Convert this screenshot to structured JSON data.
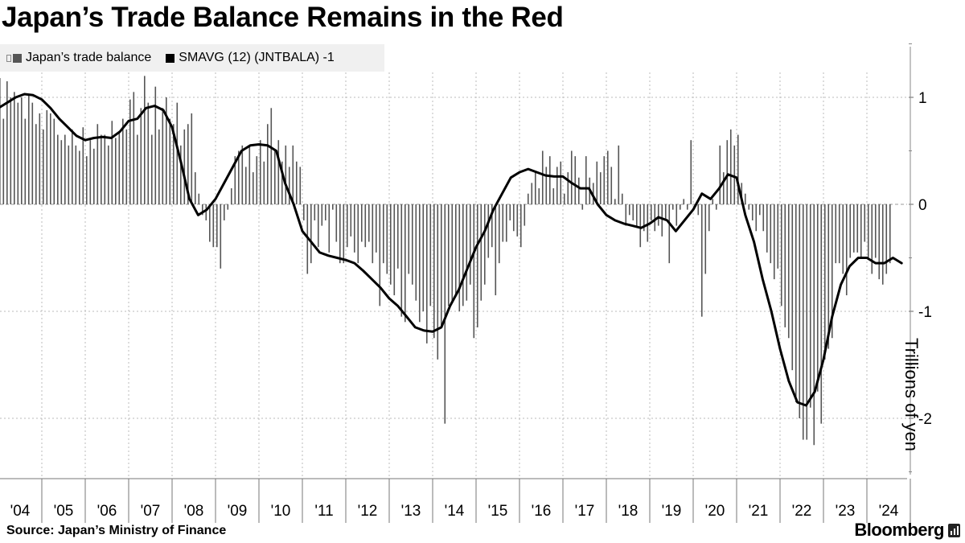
{
  "header": {
    "title": "Japan’s Trade Balance Remains in the Red"
  },
  "legend": {
    "items": [
      {
        "label": "Japan’s trade balance",
        "color": "#555555"
      },
      {
        "label": "SMAVG (12) (JNTBALA) -1",
        "color": "#000000"
      }
    ]
  },
  "footer": {
    "source": "Source: Japan’s Ministry of Finance",
    "brand": "Bloomberg"
  },
  "chart_data": {
    "type": "bar",
    "title": "Japan’s Trade Balance Remains in the Red",
    "ylabel": "Trillions of yen",
    "xlabel": "",
    "ylim": [
      -2.5,
      1.5
    ],
    "yticks": [
      1,
      0,
      -1,
      -2
    ],
    "ytick_labels": [
      "1",
      "0",
      "-1",
      "-2"
    ],
    "x_start": 2004,
    "x_end": 2024.9,
    "xtick_labels": [
      "'04",
      "'05",
      "'06",
      "'07",
      "'08",
      "'09",
      "'10",
      "'11",
      "'12",
      "'13",
      "'14",
      "'15",
      "'16",
      "'17",
      "'18",
      "'19",
      "'20",
      "'21",
      "'22",
      "'23",
      "'24"
    ],
    "grid": true,
    "series": [
      {
        "name": "Japan’s trade balance",
        "kind": "bar",
        "color": "#555555",
        "start": 2004.0,
        "step": 0.08333,
        "values": [
          1.18,
          0.8,
          1.15,
          1.0,
          1.05,
          0.95,
          1.0,
          0.8,
          1.02,
          0.95,
          0.75,
          0.85,
          0.7,
          0.88,
          0.85,
          0.8,
          0.65,
          0.6,
          0.65,
          0.55,
          0.7,
          0.55,
          0.5,
          0.72,
          0.45,
          0.6,
          0.52,
          0.75,
          0.65,
          0.65,
          0.55,
          0.78,
          0.62,
          0.68,
          0.8,
          0.7,
          0.98,
          1.05,
          0.65,
          0.9,
          1.2,
          0.95,
          0.65,
          1.1,
          0.7,
          0.9,
          1.0,
          0.8,
          0.75,
          0.95,
          0.55,
          0.7,
          0.75,
          0.85,
          0.3,
          0.1,
          -0.1,
          -0.15,
          -0.35,
          -0.4,
          -0.4,
          -0.6,
          -0.15,
          -0.05,
          0.15,
          0.45,
          0.5,
          0.55,
          0.35,
          0.55,
          0.3,
          0.45,
          0.6,
          0.4,
          0.75,
          0.9,
          0.5,
          0.6,
          0.4,
          0.55,
          0.35,
          0.55,
          0.4,
          0.35,
          -0.15,
          -0.65,
          -0.55,
          -0.15,
          -0.4,
          -0.2,
          -0.15,
          -0.45,
          -0.05,
          -0.35,
          -0.55,
          -0.55,
          -0.4,
          -0.3,
          -0.45,
          -0.55,
          -0.35,
          -0.4,
          -0.35,
          -0.55,
          -0.45,
          -0.95,
          -0.55,
          -0.65,
          -0.75,
          -0.85,
          -0.6,
          -1.05,
          -1.1,
          -0.65,
          -0.75,
          -0.9,
          -1.1,
          -1.0,
          -1.3,
          -0.95,
          -1.25,
          -1.45,
          -1.15,
          -2.05,
          -0.95,
          -0.9,
          -0.85,
          -1.0,
          -0.95,
          -0.9,
          -0.75,
          -1.25,
          -1.15,
          -0.9,
          -0.75,
          -0.5,
          -0.4,
          -0.85,
          -0.55,
          -0.35,
          -0.35,
          -0.15,
          -0.25,
          -0.3,
          -0.4,
          -0.2,
          0.1,
          0.2,
          0.3,
          0.15,
          0.5,
          0.35,
          0.45,
          0.15,
          0.35,
          0.4,
          0.1,
          0.3,
          0.5,
          0.45,
          0.25,
          -0.05,
          0.45,
          0.25,
          0.2,
          0.4,
          0.3,
          0.45,
          0.5,
          0.35,
          0.05,
          0.55,
          0.1,
          -0.2,
          -0.1,
          -0.15,
          -0.2,
          -0.4,
          -0.25,
          -0.35,
          -0.15,
          -0.25,
          -0.2,
          -0.3,
          -0.15,
          -0.55,
          -0.05,
          -0.2,
          -0.05,
          0.05,
          -0.05,
          0.6,
          0.0,
          -0.1,
          -1.05,
          -0.65,
          -0.25,
          0.05,
          -0.05,
          0.55,
          0.3,
          0.6,
          0.7,
          0.55,
          0.65,
          0.2,
          0.1,
          -0.05,
          -0.15,
          -0.25,
          -0.1,
          -0.25,
          -0.45,
          -0.55,
          -0.7,
          -0.6,
          -0.95,
          -1.15,
          -1.25,
          -1.55,
          -1.85,
          -2.0,
          -2.2,
          -2.2,
          -1.9,
          -2.25,
          -1.75,
          -2.05,
          -1.45,
          -1.35,
          -1.25,
          -0.55,
          -0.55,
          -0.65,
          -0.85,
          -0.5,
          -0.45,
          -0.45,
          -0.5,
          -0.35,
          -0.5,
          -0.65,
          -0.5,
          -0.7,
          -0.75,
          -0.65,
          -0.55
        ]
      },
      {
        "name": "SMAVG (12) (JNTBALA) -1",
        "kind": "line",
        "color": "#000000",
        "x": [
          2004.0,
          2004.2,
          2004.4,
          2004.6,
          2004.8,
          2005.0,
          2005.2,
          2005.4,
          2005.6,
          2005.8,
          2006.0,
          2006.2,
          2006.4,
          2006.6,
          2006.8,
          2007.0,
          2007.2,
          2007.4,
          2007.6,
          2007.8,
          2008.0,
          2008.2,
          2008.4,
          2008.6,
          2008.8,
          2009.0,
          2009.2,
          2009.4,
          2009.6,
          2009.8,
          2010.0,
          2010.2,
          2010.4,
          2010.6,
          2010.8,
          2011.0,
          2011.2,
          2011.4,
          2011.6,
          2011.8,
          2012.0,
          2012.2,
          2012.4,
          2012.6,
          2012.8,
          2013.0,
          2013.2,
          2013.4,
          2013.6,
          2013.8,
          2014.0,
          2014.2,
          2014.4,
          2014.6,
          2014.8,
          2015.0,
          2015.2,
          2015.4,
          2015.6,
          2015.8,
          2016.0,
          2016.2,
          2016.4,
          2016.6,
          2016.8,
          2017.0,
          2017.2,
          2017.4,
          2017.6,
          2017.8,
          2018.0,
          2018.2,
          2018.4,
          2018.6,
          2018.8,
          2019.0,
          2019.2,
          2019.4,
          2019.6,
          2019.8,
          2020.0,
          2020.2,
          2020.4,
          2020.6,
          2020.8,
          2021.0,
          2021.2,
          2021.4,
          2021.6,
          2021.8,
          2022.0,
          2022.2,
          2022.4,
          2022.6,
          2022.8,
          2023.0,
          2023.2,
          2023.4,
          2023.6,
          2023.8,
          2024.0,
          2024.2,
          2024.4,
          2024.6,
          2024.8
        ],
        "values": [
          0.9,
          0.95,
          1.0,
          1.03,
          1.02,
          0.98,
          0.9,
          0.8,
          0.72,
          0.64,
          0.6,
          0.62,
          0.63,
          0.62,
          0.68,
          0.78,
          0.8,
          0.9,
          0.92,
          0.88,
          0.72,
          0.4,
          0.05,
          -0.1,
          -0.05,
          0.05,
          0.2,
          0.35,
          0.5,
          0.55,
          0.56,
          0.55,
          0.5,
          0.2,
          0.0,
          -0.25,
          -0.35,
          -0.45,
          -0.48,
          -0.5,
          -0.52,
          -0.55,
          -0.62,
          -0.7,
          -0.78,
          -0.88,
          -0.95,
          -1.05,
          -1.15,
          -1.18,
          -1.19,
          -1.15,
          -0.95,
          -0.8,
          -0.6,
          -0.4,
          -0.25,
          -0.05,
          0.1,
          0.25,
          0.3,
          0.33,
          0.3,
          0.27,
          0.26,
          0.26,
          0.2,
          0.15,
          0.15,
          0.0,
          -0.1,
          -0.15,
          -0.18,
          -0.2,
          -0.22,
          -0.18,
          -0.12,
          -0.15,
          -0.25,
          -0.15,
          -0.05,
          0.1,
          0.05,
          0.15,
          0.28,
          0.25,
          -0.1,
          -0.35,
          -0.7,
          -1.0,
          -1.35,
          -1.65,
          -1.85,
          -1.88,
          -1.75,
          -1.45,
          -1.05,
          -0.75,
          -0.58,
          -0.5,
          -0.5,
          -0.55,
          -0.55,
          -0.5,
          -0.55
        ]
      }
    ],
    "annotations": []
  }
}
